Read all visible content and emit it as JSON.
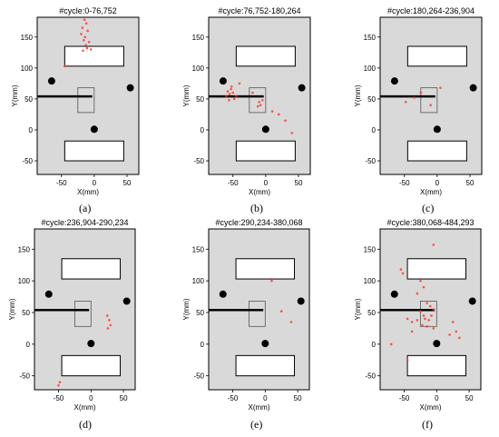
{
  "chart_data": [
    {
      "type": "scatter",
      "label": "(a)",
      "title": "#cycle:0-76,752",
      "xlabel": "X(mm)",
      "ylabel": "Y(mm)",
      "xticks": [
        -50,
        0,
        50
      ],
      "yticks": [
        -50,
        0,
        50,
        100,
        150
      ],
      "points": [
        [
          -15,
          178
        ],
        [
          -12,
          172
        ],
        [
          -18,
          165
        ],
        [
          -10,
          160
        ],
        [
          -20,
          155
        ],
        [
          -14,
          150
        ],
        [
          -16,
          145
        ],
        [
          -8,
          142
        ],
        [
          -13,
          137
        ],
        [
          -11,
          132
        ],
        [
          -17,
          128
        ],
        [
          -5,
          130
        ],
        [
          -45,
          103
        ]
      ]
    },
    {
      "type": "scatter",
      "label": "(b)",
      "title": "#cycle:76,752-180,264",
      "xlabel": "X(mm)",
      "ylabel": "Y(mm)",
      "xticks": [
        -50,
        0,
        50
      ],
      "yticks": [
        -50,
        0,
        50,
        100,
        150
      ],
      "points": [
        [
          -60,
          55
        ],
        [
          -58,
          62
        ],
        [
          -55,
          58
        ],
        [
          -53,
          66
        ],
        [
          -50,
          60
        ],
        [
          -48,
          50
        ],
        [
          -56,
          48
        ],
        [
          -45,
          55
        ],
        [
          -52,
          70
        ],
        [
          -40,
          75
        ],
        [
          -10,
          45
        ],
        [
          -8,
          40
        ],
        [
          -12,
          38
        ],
        [
          -5,
          48
        ],
        [
          10,
          30
        ],
        [
          20,
          25
        ],
        [
          30,
          15
        ],
        [
          40,
          -5
        ],
        [
          -20,
          60
        ]
      ]
    },
    {
      "type": "scatter",
      "label": "(c)",
      "title": "#cycle:180,264-236,904",
      "xlabel": "X(mm)",
      "ylabel": "Y(mm)",
      "xticks": [
        -50,
        0,
        50
      ],
      "yticks": [
        -50,
        0,
        50,
        100,
        150
      ],
      "points": [
        [
          -48,
          45
        ],
        [
          -25,
          60
        ],
        [
          5,
          68
        ],
        [
          -10,
          40
        ],
        [
          -35,
          52
        ]
      ]
    },
    {
      "type": "scatter",
      "label": "(d)",
      "title": "#cycle:236,904-290,234",
      "xlabel": "X(mm)",
      "ylabel": "Y(mm)",
      "xticks": [
        -50,
        0,
        50
      ],
      "yticks": [
        -50,
        0,
        50,
        100,
        150
      ],
      "points": [
        [
          25,
          45
        ],
        [
          28,
          38
        ],
        [
          30,
          30
        ],
        [
          26,
          25
        ],
        [
          -50,
          -65
        ],
        [
          -48,
          -60
        ]
      ]
    },
    {
      "type": "scatter",
      "label": "(e)",
      "title": "#cycle:290,234-380,068",
      "xlabel": "X(mm)",
      "ylabel": "Y(mm)",
      "xticks": [
        -50,
        0,
        50
      ],
      "yticks": [
        -50,
        0,
        50,
        100,
        150
      ],
      "points": [
        [
          10,
          100
        ],
        [
          25,
          52
        ],
        [
          40,
          35
        ]
      ]
    },
    {
      "type": "scatter",
      "label": "(f)",
      "title": "#cycle:380,068-484,293",
      "xlabel": "X(mm)",
      "ylabel": "Y(mm)",
      "xticks": [
        -50,
        0,
        50
      ],
      "yticks": [
        -50,
        0,
        50,
        100,
        150
      ],
      "points": [
        [
          -5,
          157
        ],
        [
          -55,
          118
        ],
        [
          -52,
          112
        ],
        [
          -25,
          100
        ],
        [
          -20,
          90
        ],
        [
          -30,
          80
        ],
        [
          -15,
          65
        ],
        [
          -10,
          60
        ],
        [
          -5,
          55
        ],
        [
          -25,
          52
        ],
        [
          -20,
          45
        ],
        [
          -18,
          40
        ],
        [
          -12,
          38
        ],
        [
          -8,
          45
        ],
        [
          -30,
          38
        ],
        [
          -38,
          35
        ],
        [
          -22,
          30
        ],
        [
          -15,
          28
        ],
        [
          -5,
          25
        ],
        [
          25,
          35
        ],
        [
          30,
          20
        ],
        [
          35,
          10
        ],
        [
          20,
          15
        ],
        [
          -45,
          -25
        ],
        [
          -70,
          0
        ],
        [
          -38,
          20
        ],
        [
          -45,
          40
        ]
      ]
    }
  ]
}
